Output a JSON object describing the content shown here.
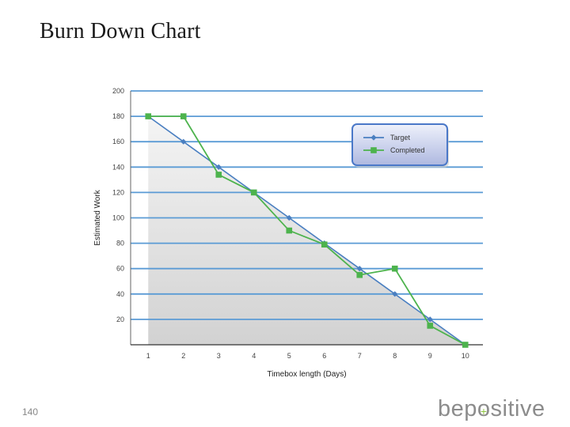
{
  "slide": {
    "title": "Burn Down Chart",
    "page_number": "140",
    "logo_text": "bepositive"
  },
  "colors": {
    "target": "#4a7fc1",
    "completed": "#4db34d",
    "grid": "#5b9bd5",
    "legend_border": "#4a78c8"
  },
  "chart_data": {
    "type": "line",
    "title": "",
    "xlabel": "Timebox length (Days)",
    "ylabel": "Estimated Work",
    "x": [
      1,
      2,
      3,
      4,
      5,
      6,
      7,
      8,
      9,
      10
    ],
    "xticks": [
      "1",
      "2",
      "3",
      "4",
      "5",
      "6",
      "7",
      "8",
      "9",
      "10"
    ],
    "ylim": [
      0,
      200
    ],
    "yticks": [
      "20",
      "40",
      "60",
      "80",
      "100",
      "120",
      "140",
      "160",
      "180",
      "200"
    ],
    "grid": true,
    "legend_position": "top-right",
    "series": [
      {
        "name": "Target",
        "values": [
          180,
          160,
          140,
          120,
          100,
          80,
          60,
          40,
          20,
          0
        ],
        "marker": "diamond"
      },
      {
        "name": "Completed",
        "values": [
          180,
          180,
          134,
          120,
          90,
          79,
          55,
          60,
          15,
          0
        ],
        "marker": "square"
      }
    ]
  }
}
